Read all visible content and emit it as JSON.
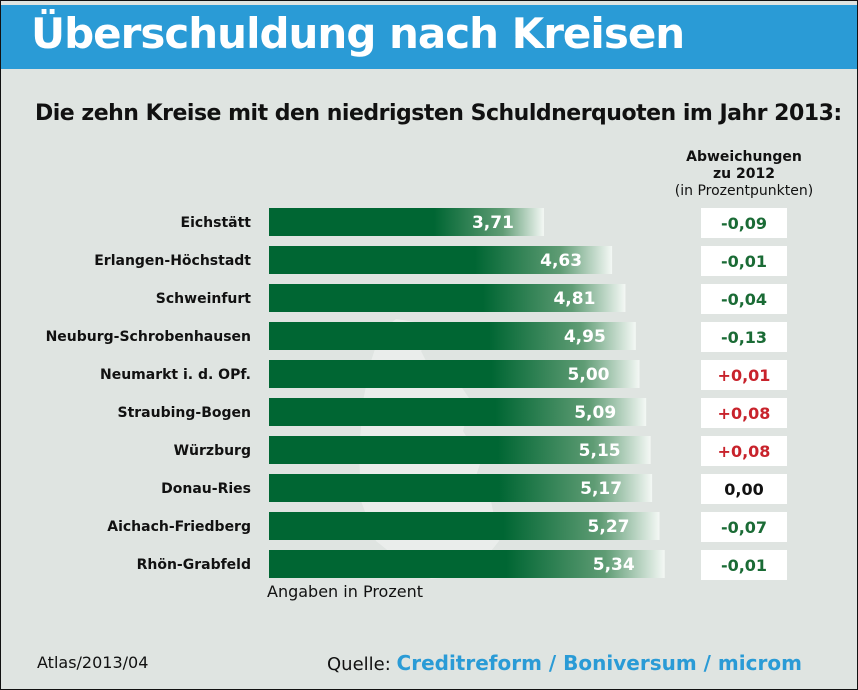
{
  "title": "Überschuldung nach Kreisen",
  "chart_data": {
    "type": "bar",
    "title": "Die zehn Kreise mit den niedrigsten Schuldnerquoten im Jahr 2013:",
    "unit_note": "Angaben in Prozent",
    "categories": [
      "Eichstätt",
      "Erlangen-Höchstadt",
      "Schweinfurt",
      "Neuburg-Schrobenhausen",
      "Neumarkt i. d. OPf.",
      "Straubing-Bogen",
      "Würzburg",
      "Donau-Ries",
      "Aichach-Friedberg",
      "Rhön-Grabfeld"
    ],
    "values": [
      3.71,
      4.63,
      4.81,
      4.95,
      5.0,
      5.09,
      5.15,
      5.17,
      5.27,
      5.34
    ],
    "value_labels": [
      "3,71",
      "4,63",
      "4,81",
      "4,95",
      "5,00",
      "5,09",
      "5,15",
      "5,17",
      "5,27",
      "5,34"
    ],
    "deviation_header": {
      "line1": "Abweichungen",
      "line2": "zu 2012",
      "line3": "(in Prozentpunkten)"
    },
    "deviations": [
      -0.09,
      -0.01,
      -0.04,
      -0.13,
      0.01,
      0.08,
      0.08,
      0.0,
      -0.07,
      -0.01
    ],
    "deviation_labels": [
      "-0,09",
      "-0,01",
      "-0,04",
      "-0,13",
      "+0,01",
      "+0,08",
      "+0,08",
      "0,00",
      "-0,07",
      "-0,01"
    ],
    "colors": {
      "bar": "#006633",
      "negative": "#1a6b35",
      "positive": "#c8232c",
      "zero": "#111111"
    }
  },
  "footer": {
    "atlas": "Atlas/2013/04",
    "source_prefix": "Quelle:",
    "source_brand": "Creditreform / Boniversum / microm"
  }
}
